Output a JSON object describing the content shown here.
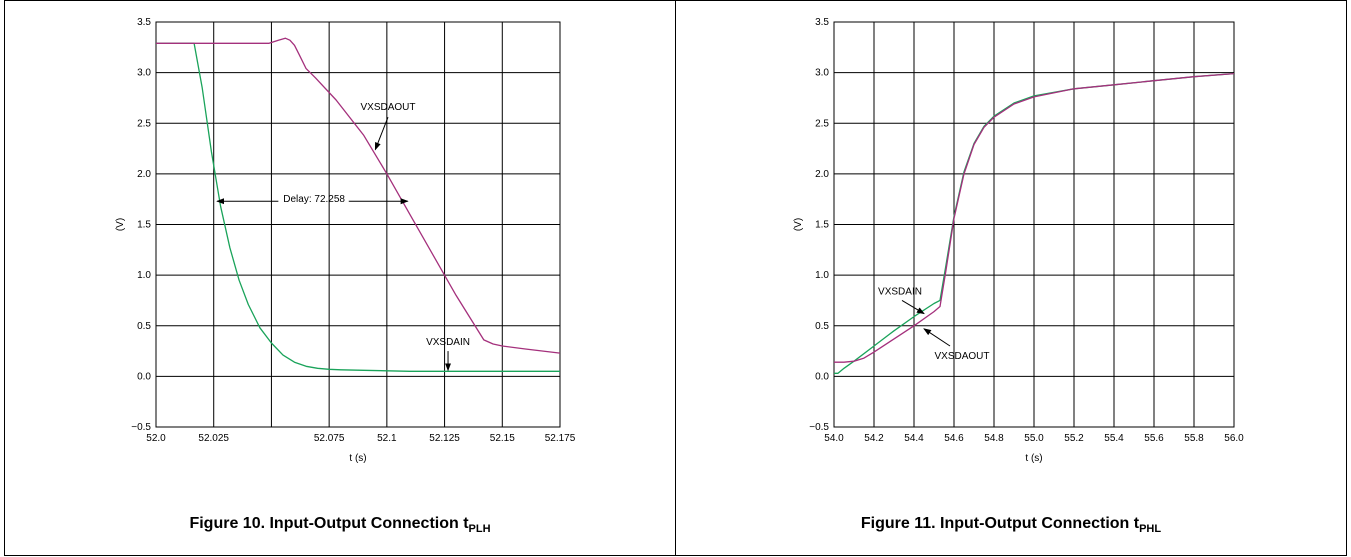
{
  "colors": {
    "vxsdain": "#1aa35a",
    "vxsdaout": "#a4307c",
    "grid": "#000000",
    "border": "#000000",
    "background": "#ffffff"
  },
  "figures": [
    {
      "caption_main": "Figure 10. Input-Output Connection t",
      "caption_sub": "PLH"
    },
    {
      "caption_main": "Figure 11. Input-Output Connection t",
      "caption_sub": "PHL"
    }
  ],
  "chart_data": [
    {
      "type": "line",
      "title": "",
      "xlabel": "t (s)",
      "ylabel": "(V)",
      "xlim": [
        52.0,
        52.175
      ],
      "ylim": [
        -0.5,
        3.5
      ],
      "grid": true,
      "x_ticks": [
        52.0,
        52.025,
        52.05,
        52.075,
        52.1,
        52.125,
        52.15,
        52.175
      ],
      "x_tick_labels": [
        "52.0",
        "52.025",
        "",
        "52.075",
        "52.1",
        "52.125",
        "52.15",
        "52.175"
      ],
      "y_ticks": [
        -0.5,
        0.0,
        0.5,
        1.0,
        1.5,
        2.0,
        2.5,
        3.0,
        3.5
      ],
      "y_tick_labels": [
        "−0.5",
        "0.0",
        "0.5",
        "1.0",
        "1.5",
        "2.0",
        "2.5",
        "3.0",
        "3.5"
      ],
      "series": [
        {
          "name": "VXSDAIN",
          "color": "#1aa35a",
          "x": [
            52.0,
            52.0165,
            52.02,
            52.024,
            52.028,
            52.032,
            52.036,
            52.04,
            52.045,
            52.05,
            52.055,
            52.06,
            52.065,
            52.07,
            52.075,
            52.08,
            52.09,
            52.1,
            52.11,
            52.125,
            52.15,
            52.175
          ],
          "y": [
            3.29,
            3.29,
            2.85,
            2.22,
            1.68,
            1.27,
            0.95,
            0.71,
            0.48,
            0.33,
            0.21,
            0.14,
            0.1,
            0.08,
            0.07,
            0.065,
            0.06,
            0.055,
            0.05,
            0.05,
            0.05,
            0.05
          ]
        },
        {
          "name": "VXSDAOUT",
          "color": "#a4307c",
          "x": [
            52.0,
            52.04,
            52.049,
            52.053,
            52.056,
            52.058,
            52.06,
            52.062,
            52.065,
            52.069,
            52.078,
            52.09,
            52.1,
            52.11,
            52.12,
            52.13,
            52.142,
            52.146,
            52.15,
            52.16,
            52.175
          ],
          "y": [
            3.29,
            3.29,
            3.29,
            3.32,
            3.34,
            3.32,
            3.27,
            3.18,
            3.04,
            2.95,
            2.73,
            2.38,
            2.0,
            1.6,
            1.2,
            0.8,
            0.36,
            0.32,
            0.3,
            0.27,
            0.23
          ]
        }
      ],
      "annotations": [
        {
          "text": "VXSDAOUT",
          "x": 52.1005,
          "y": 2.66
        },
        {
          "text": "Delay: 72.258",
          "x": 52.0685,
          "y": 1.75
        },
        {
          "text": "VXSDAIN",
          "x": 52.1265,
          "y": 0.34
        }
      ]
    },
    {
      "type": "line",
      "title": "",
      "xlabel": "t (s)",
      "ylabel": "(V)",
      "xlim": [
        54.0,
        56.0
      ],
      "ylim": [
        -0.5,
        3.5
      ],
      "grid": true,
      "x_ticks": [
        54.0,
        54.2,
        54.4,
        54.6,
        54.8,
        55.0,
        55.2,
        55.4,
        55.6,
        55.8,
        56.0
      ],
      "x_tick_labels": [
        "54.0",
        "54.2",
        "54.4",
        "54.6",
        "54.8",
        "55.0",
        "55.2",
        "55.4",
        "55.6",
        "55.8",
        "56.0"
      ],
      "y_ticks": [
        -0.5,
        0.0,
        0.5,
        1.0,
        1.5,
        2.0,
        2.5,
        3.0,
        3.5
      ],
      "y_tick_labels": [
        "−0.5",
        "0.0",
        "0.5",
        "1.0",
        "1.5",
        "2.0",
        "2.5",
        "3.0",
        "3.5"
      ],
      "series": [
        {
          "name": "VXSDAIN",
          "color": "#1aa35a",
          "x": [
            54.0,
            54.02,
            54.05,
            54.1,
            54.2,
            54.3,
            54.4,
            54.5,
            54.53,
            54.56,
            54.6,
            54.65,
            54.7,
            54.75,
            54.8,
            54.9,
            55.0,
            55.2,
            55.4,
            55.6,
            55.8,
            56.0
          ],
          "y": [
            0.03,
            0.03,
            0.08,
            0.15,
            0.3,
            0.45,
            0.59,
            0.72,
            0.75,
            1.1,
            1.58,
            2.02,
            2.3,
            2.47,
            2.57,
            2.7,
            2.77,
            2.84,
            2.88,
            2.92,
            2.96,
            2.99
          ]
        },
        {
          "name": "VXSDAOUT",
          "color": "#a4307c",
          "x": [
            54.0,
            54.05,
            54.1,
            54.15,
            54.2,
            54.3,
            54.4,
            54.5,
            54.53,
            54.56,
            54.6,
            54.65,
            54.7,
            54.75,
            54.8,
            54.9,
            55.0,
            55.2,
            55.4,
            55.6,
            55.8,
            56.0
          ],
          "y": [
            0.14,
            0.14,
            0.15,
            0.18,
            0.24,
            0.37,
            0.5,
            0.64,
            0.69,
            1.05,
            1.56,
            2.0,
            2.29,
            2.46,
            2.56,
            2.69,
            2.76,
            2.84,
            2.88,
            2.92,
            2.96,
            2.99
          ]
        }
      ],
      "annotations": [
        {
          "text": "VXSDAIN",
          "x": 54.33,
          "y": 0.84
        },
        {
          "text": "VXSDAOUT",
          "x": 54.64,
          "y": 0.2
        }
      ]
    }
  ]
}
